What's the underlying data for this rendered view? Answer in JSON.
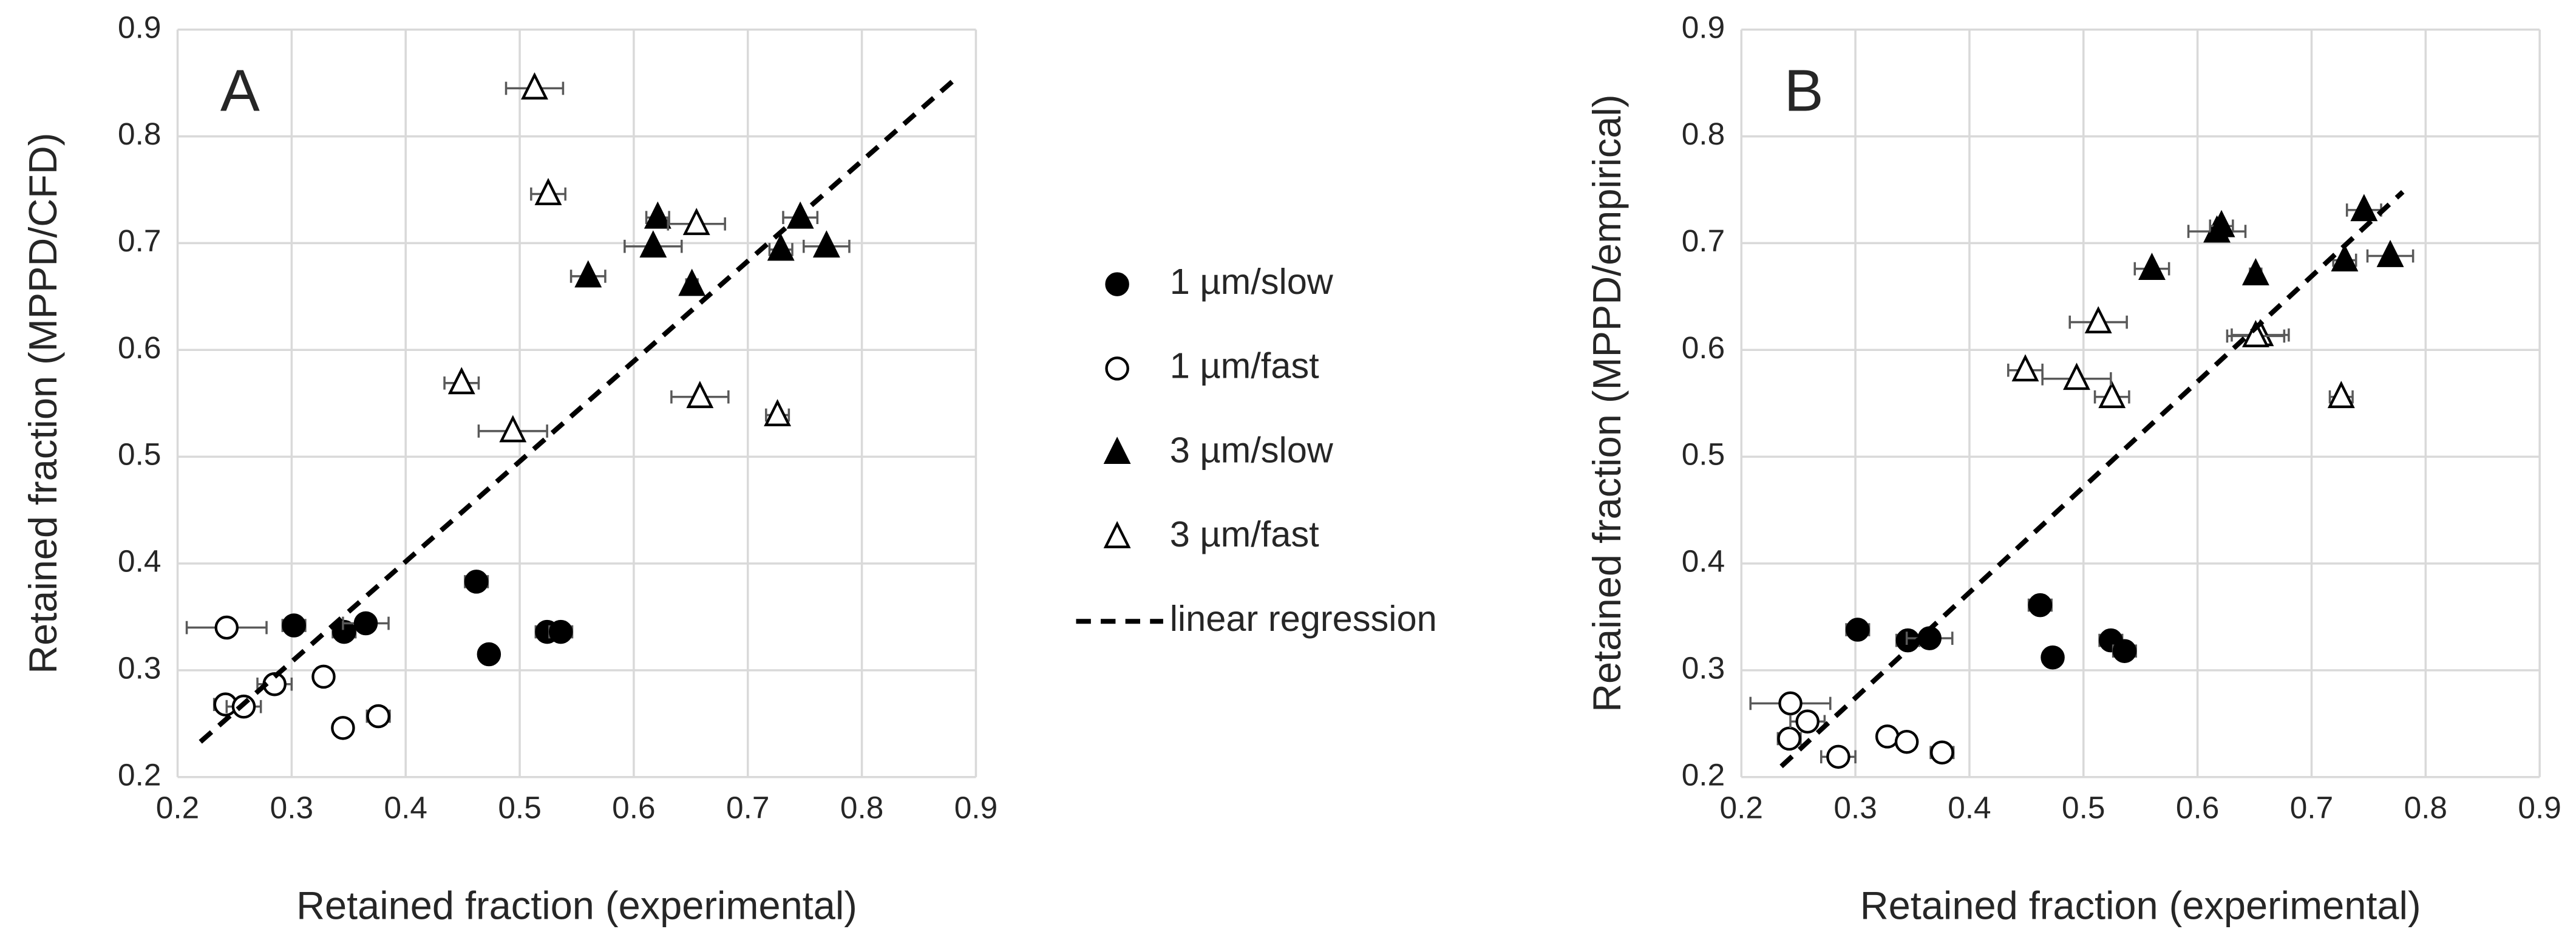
{
  "chart_data": [
    {
      "type": "scatter",
      "title": "A",
      "x_label": "Retained fraction (experimental)",
      "y_label": "Retained fraction (MPPD/CFD)",
      "xlim": [
        0.2,
        0.9
      ],
      "ylim": [
        0.2,
        0.9
      ],
      "xticks": [
        0.2,
        0.3,
        0.4,
        0.5,
        0.6,
        0.7,
        0.8,
        0.9
      ],
      "yticks": [
        0.2,
        0.3,
        0.4,
        0.5,
        0.6,
        0.7,
        0.8,
        0.9
      ],
      "grid": true,
      "series": [
        {
          "name": "1 µm/slow",
          "marker": "circle",
          "filled": true,
          "color": "#000000",
          "x": [
            0.302,
            0.346,
            0.365,
            0.462,
            0.473,
            0.524,
            0.536
          ],
          "values": [
            0.342,
            0.336,
            0.344,
            0.383,
            0.315,
            0.336,
            0.336
          ],
          "xerr": [
            0.01,
            0.01,
            0.02,
            0.01,
            0.006,
            0.01,
            0.01
          ]
        },
        {
          "name": "1 µm/fast",
          "marker": "circle",
          "filled": false,
          "color": "#000000",
          "x": [
            0.243,
            0.242,
            0.258,
            0.285,
            0.328,
            0.345,
            0.376
          ],
          "values": [
            0.34,
            0.268,
            0.266,
            0.287,
            0.294,
            0.246,
            0.257
          ],
          "xerr": [
            0.035,
            0.01,
            0.015,
            0.015,
            0.005,
            0.006,
            0.01
          ]
        },
        {
          "name": "3 µm/slow",
          "marker": "triangle",
          "filled": true,
          "color": "#000000",
          "x": [
            0.56,
            0.617,
            0.621,
            0.651,
            0.729,
            0.746,
            0.769
          ],
          "values": [
            0.669,
            0.697,
            0.724,
            0.661,
            0.694,
            0.724,
            0.697
          ],
          "xerr": [
            0.015,
            0.025,
            0.01,
            0.005,
            0.01,
            0.015,
            0.02
          ]
        },
        {
          "name": "3 µm/fast",
          "marker": "triangle",
          "filled": false,
          "color": "#000000",
          "x": [
            0.513,
            0.525,
            0.449,
            0.494,
            0.655,
            0.658,
            0.726
          ],
          "values": [
            0.845,
            0.746,
            0.569,
            0.524,
            0.718,
            0.556,
            0.539
          ],
          "xerr": [
            0.025,
            0.015,
            0.015,
            0.03,
            0.025,
            0.025,
            0.01
          ]
        }
      ],
      "regression": {
        "name": "linear regression",
        "x": [
          0.22,
          0.88
        ],
        "values": [
          0.233,
          0.852
        ]
      }
    },
    {
      "type": "scatter",
      "title": "B",
      "x_label": "Retained fraction (experimental)",
      "y_label": "Retained fraction (MPPD/empirical)",
      "xlim": [
        0.2,
        0.9
      ],
      "ylim": [
        0.2,
        0.9
      ],
      "xticks": [
        0.2,
        0.3,
        0.4,
        0.5,
        0.6,
        0.7,
        0.8,
        0.9
      ],
      "yticks": [
        0.2,
        0.3,
        0.4,
        0.5,
        0.6,
        0.7,
        0.8,
        0.9
      ],
      "grid": true,
      "series": [
        {
          "marker": "circle",
          "filled": true,
          "color": "#000000",
          "x": [
            0.302,
            0.346,
            0.365,
            0.462,
            0.473,
            0.524,
            0.536
          ],
          "values": [
            0.338,
            0.328,
            0.33,
            0.361,
            0.312,
            0.328,
            0.318
          ],
          "xerr": [
            0.01,
            0.01,
            0.02,
            0.01,
            0.006,
            0.01,
            0.01
          ]
        },
        {
          "marker": "circle",
          "filled": false,
          "color": "#000000",
          "x": [
            0.243,
            0.242,
            0.258,
            0.285,
            0.328,
            0.345,
            0.376
          ],
          "values": [
            0.269,
            0.236,
            0.252,
            0.219,
            0.238,
            0.233,
            0.223
          ],
          "xerr": [
            0.035,
            0.01,
            0.015,
            0.015,
            0.005,
            0.006,
            0.01
          ]
        },
        {
          "marker": "triangle",
          "filled": true,
          "color": "#000000",
          "x": [
            0.56,
            0.617,
            0.621,
            0.651,
            0.729,
            0.746,
            0.769
          ],
          "values": [
            0.676,
            0.711,
            0.716,
            0.671,
            0.684,
            0.731,
            0.688
          ],
          "xerr": [
            0.015,
            0.025,
            0.01,
            0.005,
            0.01,
            0.015,
            0.02
          ]
        },
        {
          "marker": "triangle",
          "filled": false,
          "color": "#000000",
          "x": [
            0.513,
            0.525,
            0.449,
            0.494,
            0.655,
            0.651,
            0.726
          ],
          "values": [
            0.626,
            0.556,
            0.581,
            0.573,
            0.614,
            0.613,
            0.556
          ],
          "xerr": [
            0.025,
            0.015,
            0.015,
            0.03,
            0.025,
            0.025,
            0.01
          ]
        }
      ],
      "regression": {
        "x": [
          0.235,
          0.78
        ],
        "values": [
          0.21,
          0.748
        ]
      }
    }
  ]
}
